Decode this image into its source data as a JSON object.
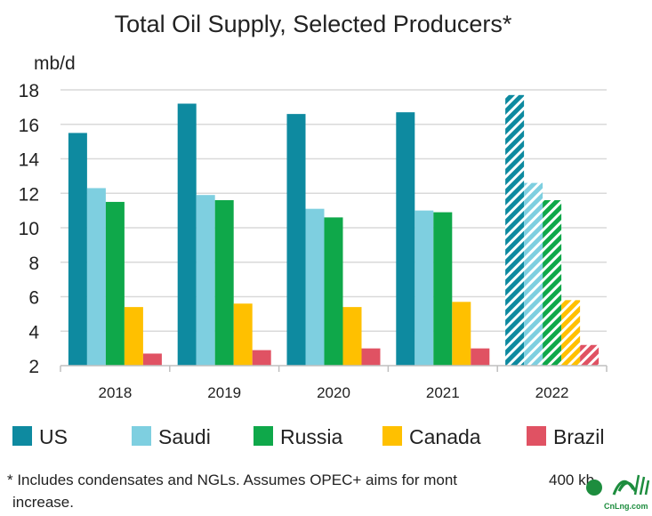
{
  "chart_data": {
    "type": "bar",
    "title": "Total Oil Supply, Selected Producers*",
    "ylabel": "mb/d",
    "xlabel": "",
    "ylim": [
      2,
      18
    ],
    "yticks": [
      2,
      4,
      6,
      8,
      10,
      12,
      14,
      16,
      18
    ],
    "grid": true,
    "legend_position": "bottom",
    "categories": [
      "2018",
      "2019",
      "2020",
      "2021",
      "2022"
    ],
    "forecast_categories": [
      "2022"
    ],
    "series": [
      {
        "name": "US",
        "color": "#0e8aa0",
        "values": [
          15.5,
          17.2,
          16.6,
          16.7,
          17.7
        ]
      },
      {
        "name": "Saudi",
        "color": "#7ecfe0",
        "values": [
          12.3,
          11.9,
          11.1,
          11.0,
          12.6
        ]
      },
      {
        "name": "Russia",
        "color": "#0fa84a",
        "values": [
          11.5,
          11.6,
          10.6,
          10.9,
          11.6
        ]
      },
      {
        "name": "Canada",
        "color": "#ffc000",
        "values": [
          5.4,
          5.6,
          5.4,
          5.7,
          5.8
        ]
      },
      {
        "name": "Brazil",
        "color": "#e05263",
        "values": [
          2.7,
          2.9,
          3.0,
          3.0,
          3.2
        ]
      }
    ],
    "footnote": "* Includes condensates and NGLs.  Assumes OPEC+ aims for mont",
    "footnote_tail": "400 kb",
    "footnote_line2": "increase."
  },
  "watermark": {
    "text": "CnLng.com",
    "color": "#1d8d3e"
  }
}
